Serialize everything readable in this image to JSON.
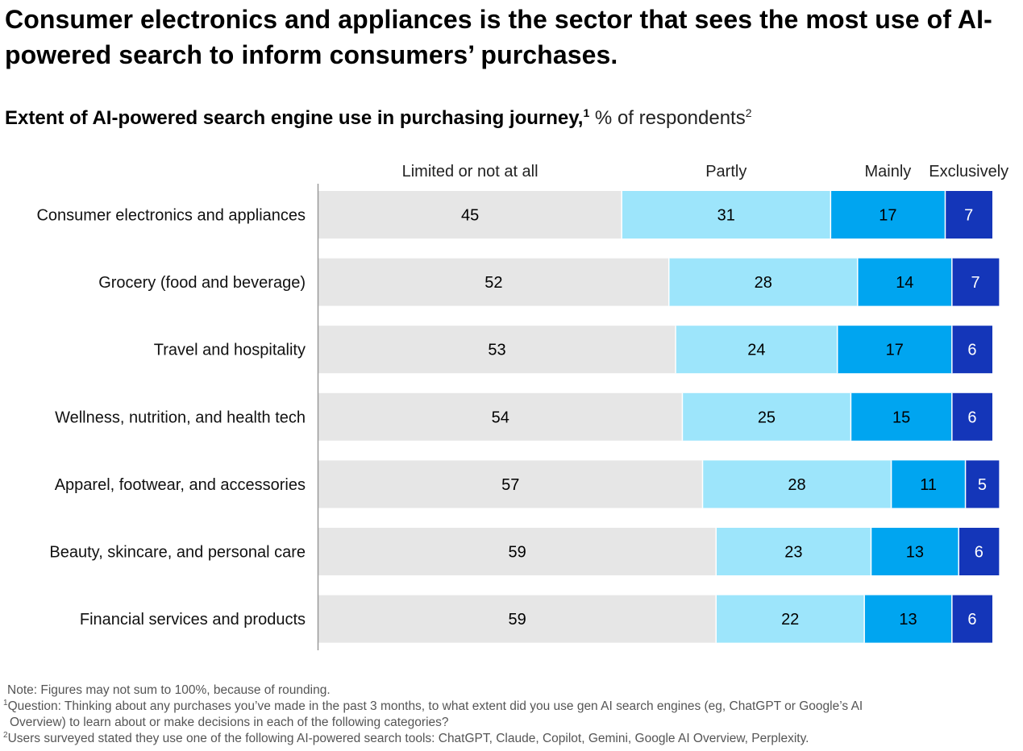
{
  "headline": "Consumer electronics and appliances is the sector that sees the most use of AI-powered search to inform consumers’ purchases.",
  "subtitle": {
    "bold": "Extent of AI-powered search engine use in purchasing journey,",
    "bold_sup": "1",
    "light": " % of respondents",
    "light_sup": "2"
  },
  "colors": {
    "limited": "#e6e6e6",
    "partly": "#9de5fb",
    "mainly": "#00a5f0",
    "exclusively": "#1436b9",
    "axis": "#999999",
    "separator": "#ffffff"
  },
  "chart_data": {
    "type": "bar",
    "orientation": "horizontal",
    "stacked": true,
    "normalized_to": 100,
    "legend_placement": "top",
    "grid": false,
    "categories": [
      "Consumer electronics and appliances",
      "Grocery (food and beverage)",
      "Travel and hospitality",
      "Wellness, nutrition, and health tech",
      "Apparel, footwear, and accessories",
      "Beauty, skincare, and personal care",
      "Financial services and products"
    ],
    "series": [
      {
        "name": "Limited or not at all",
        "values": [
          45,
          52,
          53,
          54,
          57,
          59,
          59
        ]
      },
      {
        "name": "Partly",
        "values": [
          31,
          28,
          24,
          25,
          28,
          23,
          22
        ]
      },
      {
        "name": "Mainly",
        "values": [
          17,
          14,
          17,
          15,
          11,
          13,
          13
        ]
      },
      {
        "name": "Exclusively",
        "values": [
          7,
          7,
          6,
          6,
          5,
          6,
          6
        ]
      }
    ]
  },
  "notes": {
    "note": "Note: Figures may not sum to 100%, because of rounding.",
    "footnote1_marker": "1",
    "footnote1_line1": "Question: Thinking about any purchases you’ve made in the past 3 months, to what extent did you use gen AI search engines (eg, ChatGPT or Google’s AI",
    "footnote1_line2": "Overview) to learn about or make decisions in each of the following categories?",
    "footnote2_marker": "2",
    "footnote2": "Users surveyed stated they use one of the following AI-powered search tools: ChatGPT, Claude, Copilot, Gemini, Google AI Overview, Perplexity."
  }
}
